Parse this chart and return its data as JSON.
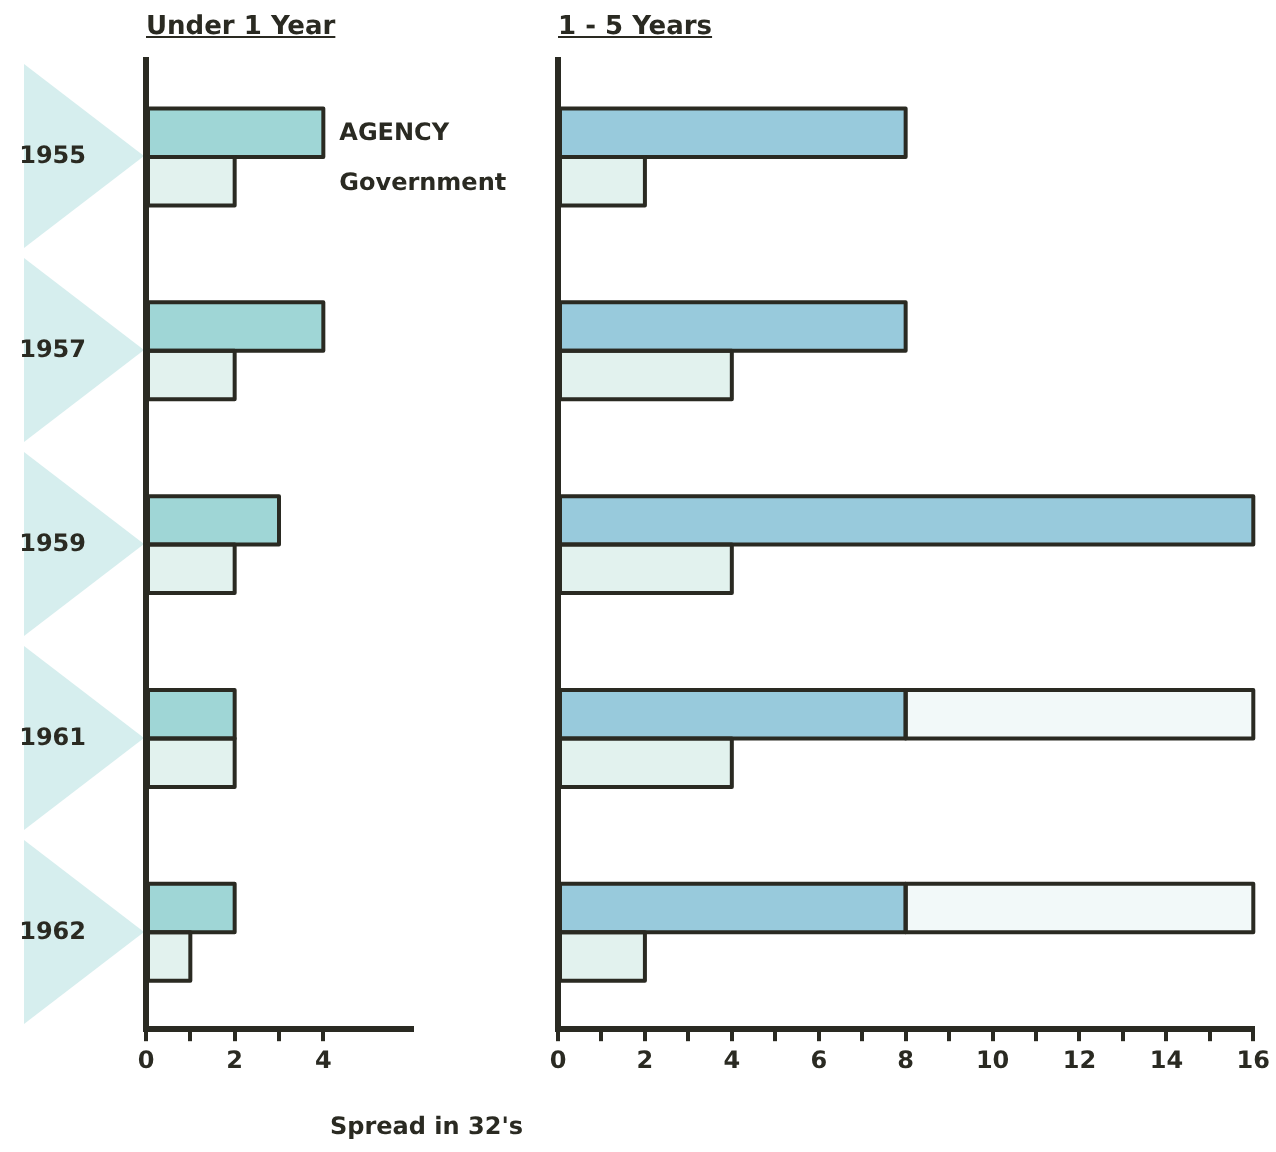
{
  "chart_data": [
    {
      "type": "bar",
      "orientation": "horizontal",
      "title": "Under 1 Year",
      "xlabel": "Spread in 32's",
      "categories": [
        "1955",
        "1957",
        "1959",
        "1961",
        "1962"
      ],
      "series": [
        {
          "name": "AGENCY",
          "color": "#9fd6d6",
          "values": [
            4,
            4,
            3,
            2,
            2
          ]
        },
        {
          "name": "Government",
          "color": "#e2f2ee",
          "values": [
            2,
            2,
            2,
            2,
            1
          ]
        }
      ],
      "xlim": [
        0,
        6
      ],
      "xticks": [
        0,
        {
          "value": 1,
          "label": null
        },
        2,
        {
          "value": 3,
          "label": null
        },
        4
      ],
      "grid": false,
      "legend": false
    },
    {
      "type": "bar",
      "orientation": "horizontal",
      "title": "1 - 5 Years",
      "categories": [
        "1955",
        "1957",
        "1959",
        "1961",
        "1962"
      ],
      "series": [
        {
          "color": "#98cadc",
          "values": [
            8,
            8,
            16,
            8,
            8
          ]
        },
        {
          "color": "#f2f9f9",
          "values": [
            null,
            null,
            null,
            8,
            8
          ],
          "base": [
            null,
            null,
            null,
            8,
            8
          ]
        },
        {
          "color": "#e2f2ee",
          "values": [
            2,
            4,
            4,
            4,
            2
          ]
        }
      ],
      "xlim": [
        0,
        16
      ],
      "xticks": [
        0,
        {
          "value": 1,
          "label": null
        },
        2,
        {
          "value": 3,
          "label": null
        },
        4,
        {
          "value": 5,
          "label": null
        },
        6,
        {
          "value": 7,
          "label": null
        },
        8,
        {
          "value": 9,
          "label": null
        },
        10,
        {
          "value": 11,
          "label": null
        },
        12,
        {
          "value": 13,
          "label": null
        },
        14,
        {
          "value": 15,
          "label": null
        },
        16
      ],
      "grid": false,
      "legend": false,
      "tick_labels": "x"
    }
  ]
}
